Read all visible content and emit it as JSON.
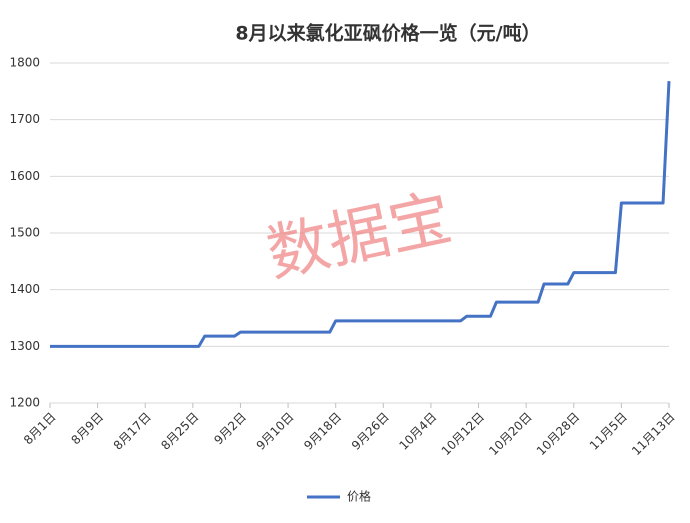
{
  "chart_data": {
    "type": "line",
    "title": "8月以来氯化亚砜价格一览（元/吨）",
    "watermark": "数据宝",
    "categories": [
      "8月1日",
      null,
      null,
      null,
      null,
      null,
      null,
      null,
      "8月9日",
      null,
      null,
      null,
      null,
      null,
      null,
      null,
      "8月17日",
      null,
      null,
      null,
      null,
      null,
      null,
      null,
      "8月25日",
      null,
      null,
      null,
      null,
      null,
      null,
      null,
      "9月2日",
      null,
      null,
      null,
      null,
      null,
      null,
      null,
      "9月10日",
      null,
      null,
      null,
      null,
      null,
      null,
      null,
      "9月18日",
      null,
      null,
      null,
      null,
      null,
      null,
      null,
      "9月26日",
      null,
      null,
      null,
      null,
      null,
      null,
      null,
      "10月4日",
      null,
      null,
      null,
      null,
      null,
      null,
      null,
      "10月12日",
      null,
      null,
      null,
      null,
      null,
      null,
      null,
      "10月20日",
      null,
      null,
      null,
      null,
      null,
      null,
      null,
      "10月28日",
      null,
      null,
      null,
      null,
      null,
      null,
      null,
      "11月5日",
      null,
      null,
      null,
      null,
      null,
      null,
      null,
      "11月13日"
    ],
    "series": [
      {
        "name": "价格",
        "color": "#4472c4",
        "values": [
          1300,
          1300,
          1300,
          1300,
          1300,
          1300,
          1300,
          1300,
          1300,
          1300,
          1300,
          1300,
          1300,
          1300,
          1300,
          1300,
          1300,
          1300,
          1300,
          1300,
          1300,
          1300,
          1300,
          1300,
          1300,
          1300,
          1318,
          1318,
          1318,
          1318,
          1318,
          1318,
          1325,
          1325,
          1325,
          1325,
          1325,
          1325,
          1325,
          1325,
          1325,
          1325,
          1325,
          1325,
          1325,
          1325,
          1325,
          1325,
          1345,
          1345,
          1345,
          1345,
          1345,
          1345,
          1345,
          1345,
          1345,
          1345,
          1345,
          1345,
          1345,
          1345,
          1345,
          1345,
          1345,
          1345,
          1345,
          1345,
          1345,
          1345,
          1353,
          1353,
          1353,
          1353,
          1353,
          1378,
          1378,
          1378,
          1378,
          1378,
          1378,
          1378,
          1378,
          1410,
          1410,
          1410,
          1410,
          1410,
          1430,
          1430,
          1430,
          1430,
          1430,
          1430,
          1430,
          1430,
          1553,
          1553,
          1553,
          1553,
          1553,
          1553,
          1553,
          1553,
          1768
        ]
      }
    ],
    "ylim": [
      1200,
      1800
    ],
    "yticks": [
      1200,
      1300,
      1400,
      1500,
      1600,
      1700,
      1800
    ],
    "grid": true,
    "legend": "bottom"
  }
}
